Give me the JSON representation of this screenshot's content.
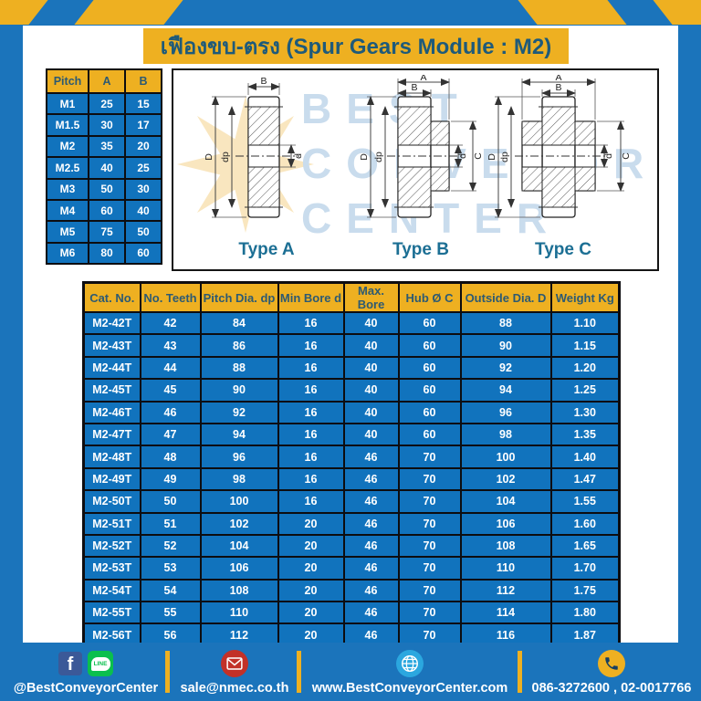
{
  "title": "เฟืองขบ-ตรง (Spur Gears Module : M2)",
  "watermark": {
    "line1": "BEST",
    "line2": "CONVEYOR",
    "line3": "CENTER"
  },
  "pitch_table": {
    "headers": [
      "Pitch",
      "A",
      "B"
    ],
    "rows": [
      [
        "M1",
        "25",
        "15"
      ],
      [
        "M1.5",
        "30",
        "17"
      ],
      [
        "M2",
        "35",
        "20"
      ],
      [
        "M2.5",
        "40",
        "25"
      ],
      [
        "M3",
        "50",
        "30"
      ],
      [
        "M4",
        "60",
        "40"
      ],
      [
        "M5",
        "75",
        "50"
      ],
      [
        "M6",
        "80",
        "60"
      ]
    ]
  },
  "diagrams": {
    "type_a": {
      "label": "Type A",
      "top": "B",
      "outer": "D",
      "pitch": "dp",
      "bore": "d"
    },
    "type_b": {
      "label": "Type B",
      "top_outer": "A",
      "top": "B",
      "outer": "D",
      "pitch": "dp",
      "bore": "d",
      "hub": "C"
    },
    "type_c": {
      "label": "Type C",
      "top_outer": "A",
      "top": "B",
      "outer": "D",
      "pitch": "dp",
      "bore": "d",
      "hub": "C"
    }
  },
  "main_table": {
    "headers": [
      "Cat. No.",
      "No. Teeth",
      "Pitch Dia. dp",
      "Min Bore d",
      "Max. Bore",
      "Hub Ø C",
      "Outside Dia. D",
      "Weight Kg"
    ],
    "rows": [
      [
        "M2-42T",
        "42",
        "84",
        "16",
        "40",
        "60",
        "88",
        "1.10"
      ],
      [
        "M2-43T",
        "43",
        "86",
        "16",
        "40",
        "60",
        "90",
        "1.15"
      ],
      [
        "M2-44T",
        "44",
        "88",
        "16",
        "40",
        "60",
        "92",
        "1.20"
      ],
      [
        "M2-45T",
        "45",
        "90",
        "16",
        "40",
        "60",
        "94",
        "1.25"
      ],
      [
        "M2-46T",
        "46",
        "92",
        "16",
        "40",
        "60",
        "96",
        "1.30"
      ],
      [
        "M2-47T",
        "47",
        "94",
        "16",
        "40",
        "60",
        "98",
        "1.35"
      ],
      [
        "M2-48T",
        "48",
        "96",
        "16",
        "46",
        "70",
        "100",
        "1.40"
      ],
      [
        "M2-49T",
        "49",
        "98",
        "16",
        "46",
        "70",
        "102",
        "1.47"
      ],
      [
        "M2-50T",
        "50",
        "100",
        "16",
        "46",
        "70",
        "104",
        "1.55"
      ],
      [
        "M2-51T",
        "51",
        "102",
        "20",
        "46",
        "70",
        "106",
        "1.60"
      ],
      [
        "M2-52T",
        "52",
        "104",
        "20",
        "46",
        "70",
        "108",
        "1.65"
      ],
      [
        "M2-53T",
        "53",
        "106",
        "20",
        "46",
        "70",
        "110",
        "1.70"
      ],
      [
        "M2-54T",
        "54",
        "108",
        "20",
        "46",
        "70",
        "112",
        "1.75"
      ],
      [
        "M2-55T",
        "55",
        "110",
        "20",
        "46",
        "70",
        "114",
        "1.80"
      ],
      [
        "M2-56T",
        "56",
        "112",
        "20",
        "46",
        "70",
        "116",
        "1.87"
      ]
    ]
  },
  "footer": {
    "social_handle": "@BestConveyorCenter",
    "facebook_letter": "f",
    "line_label": "LINE",
    "email": "sale@nmec.co.th",
    "website": "www.BestConveyorCenter.com",
    "phone": "086-3272600 , 02-0017766"
  },
  "colors": {
    "page_blue": "#1b74bb",
    "accent_yellow": "#eeb021",
    "row_blue": "#1173bd",
    "header_text": "#2d5a72",
    "type_label": "#1c6f94"
  }
}
